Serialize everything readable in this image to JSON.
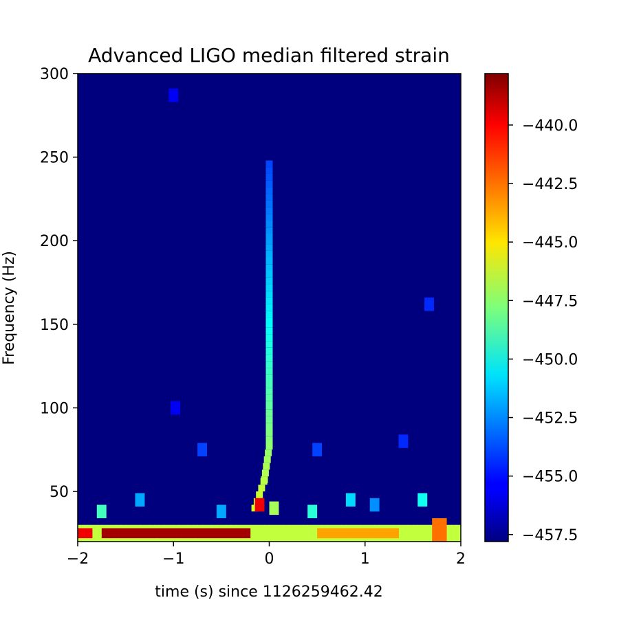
{
  "chart_data": {
    "type": "heatmap",
    "title": "Advanced LIGO median filtered strain",
    "xlabel": "time (s) since 1126259462.42",
    "ylabel": "Frequency (Hz)",
    "xlim": [
      -2,
      2
    ],
    "ylim": [
      20,
      300
    ],
    "x_ticks": [
      -2,
      -1,
      0,
      1,
      2
    ],
    "x_tick_labels": [
      "−2",
      "−1",
      "0",
      "1",
      "2"
    ],
    "y_ticks": [
      50,
      100,
      150,
      200,
      250,
      300
    ],
    "y_tick_labels": [
      "50",
      "100",
      "150",
      "200",
      "250",
      "300"
    ],
    "colormap": "jet",
    "colorbar": {
      "range": [
        -457.8,
        -437.8
      ],
      "ticks": [
        -440.0,
        -442.5,
        -445.0,
        -447.5,
        -450.0,
        -452.5,
        -455.0,
        -457.5
      ],
      "tick_labels": [
        "−440.0",
        "−442.5",
        "−445.0",
        "−447.5",
        "−450.0",
        "−452.5",
        "−455.0",
        "−457.5"
      ]
    },
    "background_value": -457.5,
    "grid": false,
    "features": [
      {
        "kind": "band",
        "t_start": -2.0,
        "t_end": 2.0,
        "f_low": 20,
        "f_high": 30,
        "value": -446.5
      },
      {
        "kind": "band",
        "t_start": -1.75,
        "t_end": -0.2,
        "f_low": 22,
        "f_high": 28,
        "value": -438.5
      },
      {
        "kind": "band",
        "t_start": 0.5,
        "t_end": 1.35,
        "f_low": 22,
        "f_high": 28,
        "value": -443.5
      },
      {
        "kind": "band",
        "t_start": 1.7,
        "t_end": 1.85,
        "f_low": 20,
        "f_high": 34,
        "value": -442.5
      },
      {
        "kind": "band",
        "t_start": -2.0,
        "t_end": -1.85,
        "f_low": 22,
        "f_high": 28,
        "value": -440.0
      },
      {
        "kind": "chirp",
        "points": [
          [
            -0.15,
            38
          ],
          [
            -0.05,
            55
          ],
          [
            0.0,
            75
          ],
          [
            0.0,
            100
          ],
          [
            0.0,
            150
          ],
          [
            0.0,
            200
          ],
          [
            0.0,
            245
          ]
        ],
        "value": -451.0
      },
      {
        "kind": "blob",
        "t": -0.1,
        "f": 42,
        "value": -440.0
      },
      {
        "kind": "blob",
        "t": 0.05,
        "f": 40,
        "value": -447.0
      },
      {
        "kind": "blob",
        "t": -1.75,
        "f": 38,
        "value": -449.0
      },
      {
        "kind": "blob",
        "t": -1.35,
        "f": 45,
        "value": -452.0
      },
      {
        "kind": "blob",
        "t": 1.6,
        "f": 45,
        "value": -450.0
      },
      {
        "kind": "blob",
        "t": 0.85,
        "f": 45,
        "value": -451.0
      },
      {
        "kind": "blob",
        "t": 1.1,
        "f": 42,
        "value": -452.5
      },
      {
        "kind": "blob",
        "t": 0.45,
        "f": 38,
        "value": -449.5
      },
      {
        "kind": "blob",
        "t": -0.5,
        "f": 38,
        "value": -452.0
      },
      {
        "kind": "blob",
        "t": -0.7,
        "f": 75,
        "value": -454.0
      },
      {
        "kind": "blob",
        "t": 0.5,
        "f": 75,
        "value": -454.0
      },
      {
        "kind": "blob",
        "t": 1.4,
        "f": 80,
        "value": -454.5
      },
      {
        "kind": "blob",
        "t": 1.67,
        "f": 162,
        "value": -454.5
      },
      {
        "kind": "blob",
        "t": -0.98,
        "f": 100,
        "value": -455.5
      },
      {
        "kind": "blob",
        "t": -1.0,
        "f": 287,
        "value": -455.5
      }
    ]
  }
}
